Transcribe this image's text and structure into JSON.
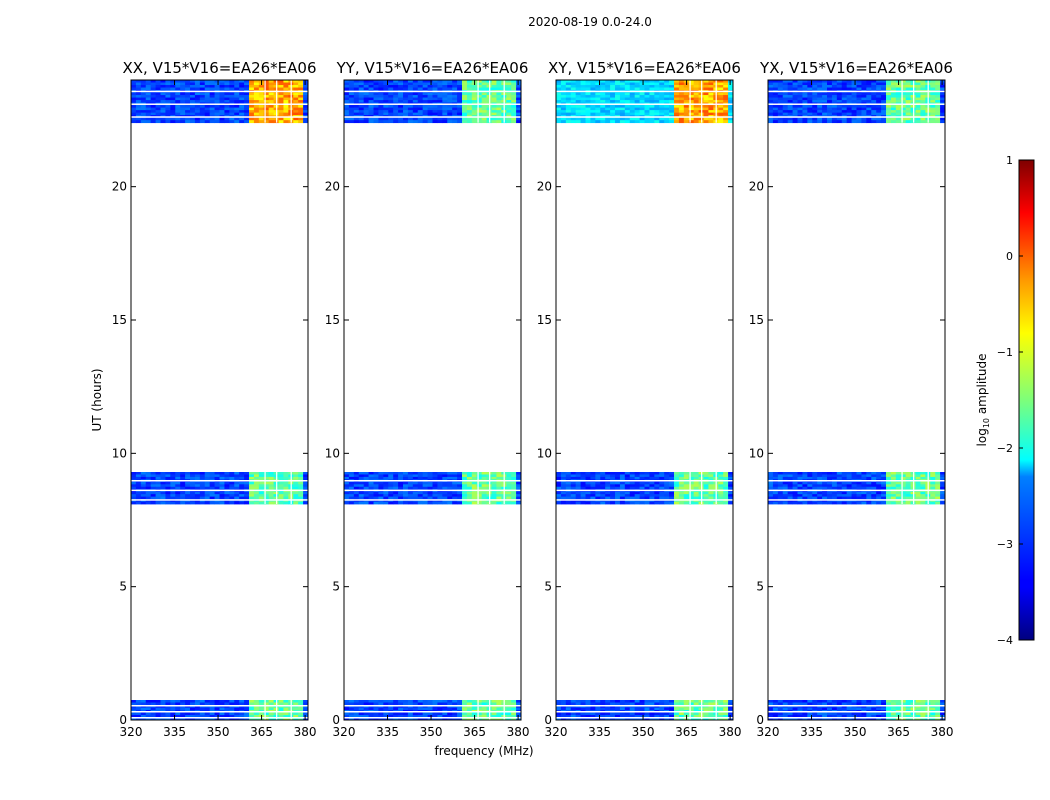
{
  "figure": {
    "suptitle": "2020-08-19 0.0-24.0"
  },
  "chart_data": {
    "type": "heatmap",
    "panels": [
      {
        "title": "XX, V15*V16=EA26*EA06",
        "signal": "strong"
      },
      {
        "title": "YY, V15*V16=EA26*EA06",
        "signal": "medium"
      },
      {
        "title": "XY, V15*V16=EA26*EA06",
        "signal": "strong"
      },
      {
        "title": "YX, V15*V16=EA26*EA06",
        "signal": "medium"
      }
    ],
    "xlabel": "frequency (MHz)",
    "ylabel": "UT (hours)",
    "xlim": [
      320,
      381
    ],
    "ylim": [
      0,
      24
    ],
    "xticks": [
      320,
      335,
      350,
      365,
      380
    ],
    "yticks": [
      0,
      5,
      10,
      15,
      20
    ],
    "data_time_ranges_hours": [
      [
        0.0,
        0.75
      ],
      [
        8.1,
        9.3
      ],
      [
        22.4,
        24.0
      ]
    ],
    "rfi_band_mhz": [
      360,
      380
    ],
    "colorbar": {
      "label": "log10 amplitude",
      "label_main": "log",
      "label_sub": "10",
      "label_rest": " amplitude",
      "range": [
        -4,
        1
      ],
      "ticks": [
        1,
        0,
        -1,
        -2,
        -3,
        -4
      ],
      "tick_labels": [
        "1",
        "0",
        "−1",
        "−2",
        "−3",
        "−4"
      ],
      "colormap": "jet"
    }
  },
  "colors": {
    "frame": "#000000",
    "background": "#ffffff"
  }
}
